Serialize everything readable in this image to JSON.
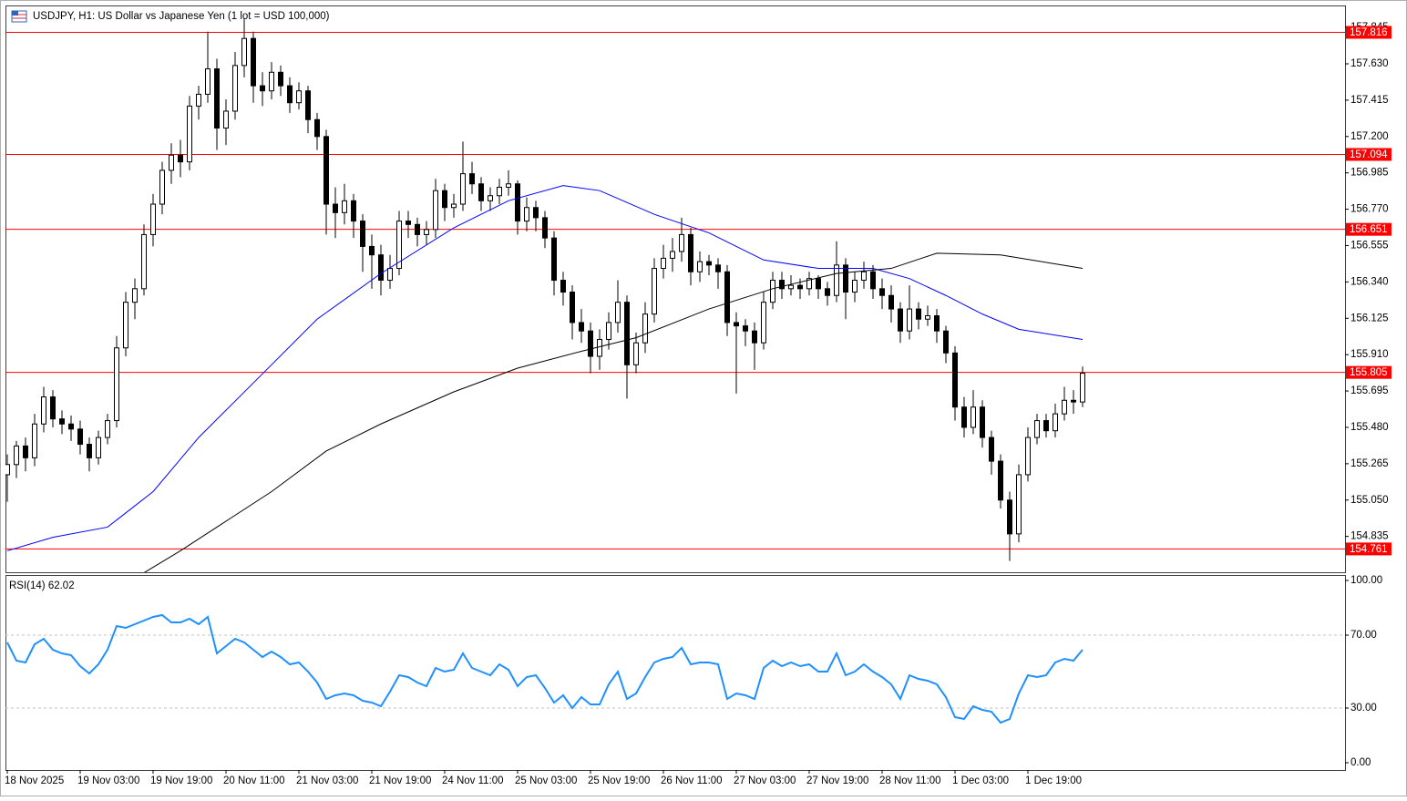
{
  "window_title": "USDJPY, H1:  US Dollar vs Japanese Yen (1 lot = USD 100,000)",
  "chart_data": [
    {
      "type": "candlestick",
      "categories": [
        "18 Nov 2025",
        null,
        null,
        null,
        null,
        null,
        null,
        null,
        "19 Nov 03:00",
        null,
        null,
        null,
        null,
        null,
        null,
        null,
        "19 Nov 19:00",
        null,
        null,
        null,
        null,
        null,
        null,
        null,
        "20 Nov 11:00",
        null,
        null,
        null,
        null,
        null,
        null,
        null,
        "21 Nov 03:00",
        null,
        null,
        null,
        null,
        null,
        null,
        null,
        "21 Nov 19:00",
        null,
        null,
        null,
        null,
        null,
        null,
        null,
        "24 Nov 11:00",
        null,
        null,
        null,
        null,
        null,
        null,
        null,
        "25 Nov 03:00",
        null,
        null,
        null,
        null,
        null,
        null,
        null,
        "25 Nov 19:00",
        null,
        null,
        null,
        null,
        null,
        null,
        null,
        "26 Nov 11:00",
        null,
        null,
        null,
        null,
        null,
        null,
        null,
        "27 Nov 03:00",
        null,
        null,
        null,
        null,
        null,
        null,
        null,
        "27 Nov 19:00",
        null,
        null,
        null,
        null,
        null,
        null,
        null,
        "28 Nov 11:00",
        null,
        null,
        null,
        null,
        null,
        null,
        null,
        "1 Dec 03:00",
        null,
        null,
        null,
        null,
        null,
        null,
        null,
        "1 Dec 19:00",
        null,
        null,
        null,
        null,
        null,
        null
      ],
      "ohlc": [
        [
          155.2,
          155.32,
          155.04,
          155.26
        ],
        [
          155.26,
          155.4,
          155.18,
          155.37
        ],
        [
          155.37,
          155.42,
          155.22,
          155.3
        ],
        [
          155.3,
          155.56,
          155.25,
          155.5
        ],
        [
          155.5,
          155.72,
          155.45,
          155.66
        ],
        [
          155.66,
          155.7,
          155.48,
          155.53
        ],
        [
          155.53,
          155.58,
          155.44,
          155.5
        ],
        [
          155.5,
          155.55,
          155.4,
          155.47
        ],
        [
          155.47,
          155.52,
          155.32,
          155.38
        ],
        [
          155.38,
          155.42,
          155.22,
          155.3
        ],
        [
          155.3,
          155.46,
          155.26,
          155.42
        ],
        [
          155.42,
          155.56,
          155.38,
          155.52
        ],
        [
          155.52,
          156.02,
          155.48,
          155.95
        ],
        [
          155.95,
          156.28,
          155.9,
          156.22
        ],
        [
          156.22,
          156.36,
          156.12,
          156.3
        ],
        [
          156.3,
          156.68,
          156.26,
          156.62
        ],
        [
          156.62,
          156.86,
          156.55,
          156.8
        ],
        [
          156.8,
          157.05,
          156.74,
          157.0
        ],
        [
          157.0,
          157.16,
          156.92,
          157.09
        ],
        [
          157.09,
          157.18,
          156.96,
          157.05
        ],
        [
          157.05,
          157.44,
          157.0,
          157.38
        ],
        [
          157.38,
          157.5,
          157.3,
          157.45
        ],
        [
          157.45,
          157.82,
          157.4,
          157.6
        ],
        [
          157.6,
          157.66,
          157.12,
          157.25
        ],
        [
          157.25,
          157.42,
          157.15,
          157.35
        ],
        [
          157.35,
          157.7,
          157.3,
          157.62
        ],
        [
          157.62,
          157.9,
          157.55,
          157.78
        ],
        [
          157.78,
          157.82,
          157.4,
          157.5
        ],
        [
          157.5,
          157.58,
          157.38,
          157.47
        ],
        [
          157.47,
          157.64,
          157.42,
          157.58
        ],
        [
          157.58,
          157.62,
          157.44,
          157.5
        ],
        [
          157.5,
          157.55,
          157.34,
          157.4
        ],
        [
          157.4,
          157.52,
          157.36,
          157.47
        ],
        [
          157.47,
          157.5,
          157.22,
          157.3
        ],
        [
          157.3,
          157.34,
          157.12,
          157.2
        ],
        [
          157.2,
          157.24,
          156.62,
          156.8
        ],
        [
          156.8,
          156.9,
          156.6,
          156.75
        ],
        [
          156.75,
          156.92,
          156.68,
          156.82
        ],
        [
          156.82,
          156.86,
          156.6,
          156.7
        ],
        [
          156.7,
          156.74,
          156.4,
          156.55
        ],
        [
          156.55,
          156.62,
          156.3,
          156.5
        ],
        [
          156.5,
          156.56,
          156.26,
          156.35
        ],
        [
          156.35,
          156.5,
          156.3,
          156.42
        ],
        [
          156.42,
          156.76,
          156.38,
          156.7
        ],
        [
          156.7,
          156.76,
          156.6,
          156.68
        ],
        [
          156.68,
          156.72,
          156.55,
          156.62
        ],
        [
          156.62,
          156.7,
          156.56,
          156.65
        ],
        [
          156.65,
          156.95,
          156.6,
          156.88
        ],
        [
          156.88,
          156.92,
          156.7,
          156.78
        ],
        [
          156.78,
          156.86,
          156.72,
          156.8
        ],
        [
          156.8,
          157.17,
          156.76,
          156.98
        ],
        [
          156.98,
          157.05,
          156.86,
          156.92
        ],
        [
          156.92,
          156.96,
          156.76,
          156.82
        ],
        [
          156.82,
          156.9,
          156.76,
          156.85
        ],
        [
          156.85,
          156.95,
          156.8,
          156.9
        ],
        [
          156.9,
          157.0,
          156.85,
          156.92
        ],
        [
          156.92,
          156.94,
          156.62,
          156.7
        ],
        [
          156.7,
          156.84,
          156.64,
          156.78
        ],
        [
          156.78,
          156.82,
          156.64,
          156.72
        ],
        [
          156.72,
          156.76,
          156.54,
          156.6
        ],
        [
          156.6,
          156.64,
          156.26,
          156.35
        ],
        [
          156.35,
          156.4,
          156.2,
          156.28
        ],
        [
          156.28,
          156.32,
          156.0,
          156.1
        ],
        [
          156.1,
          156.18,
          155.98,
          156.05
        ],
        [
          156.05,
          156.1,
          155.8,
          155.9
        ],
        [
          155.9,
          156.06,
          155.82,
          156.0
        ],
        [
          156.0,
          156.16,
          155.94,
          156.1
        ],
        [
          156.1,
          156.35,
          156.04,
          156.22
        ],
        [
          156.22,
          156.26,
          155.65,
          155.85
        ],
        [
          155.85,
          156.04,
          155.8,
          155.98
        ],
        [
          155.98,
          156.22,
          155.92,
          156.15
        ],
        [
          156.15,
          156.48,
          156.1,
          156.42
        ],
        [
          156.42,
          156.56,
          156.36,
          156.48
        ],
        [
          156.48,
          156.6,
          156.4,
          156.52
        ],
        [
          156.52,
          156.72,
          156.46,
          156.62
        ],
        [
          156.62,
          156.66,
          156.32,
          156.4
        ],
        [
          156.4,
          156.52,
          156.34,
          156.46
        ],
        [
          156.46,
          156.5,
          156.38,
          156.44
        ],
        [
          156.44,
          156.48,
          156.3,
          156.4
        ],
        [
          156.4,
          156.44,
          156.02,
          156.1
        ],
        [
          156.1,
          156.16,
          155.68,
          156.08
        ],
        [
          156.08,
          156.12,
          155.96,
          156.05
        ],
        [
          156.05,
          156.1,
          155.82,
          155.98
        ],
        [
          155.98,
          156.28,
          155.94,
          156.22
        ],
        [
          156.22,
          156.4,
          156.18,
          156.35
        ],
        [
          156.35,
          156.4,
          156.24,
          156.3
        ],
        [
          156.3,
          156.38,
          156.26,
          156.32
        ],
        [
          156.32,
          156.36,
          156.24,
          156.3
        ],
        [
          156.3,
          156.4,
          156.26,
          156.36
        ],
        [
          156.36,
          156.38,
          156.24,
          156.3
        ],
        [
          156.3,
          156.34,
          156.2,
          156.26
        ],
        [
          156.26,
          156.58,
          156.22,
          156.44
        ],
        [
          156.44,
          156.48,
          156.12,
          156.28
        ],
        [
          156.28,
          156.4,
          156.22,
          156.35
        ],
        [
          156.35,
          156.46,
          156.3,
          156.4
        ],
        [
          156.4,
          156.44,
          156.24,
          156.3
        ],
        [
          156.3,
          156.36,
          156.18,
          156.26
        ],
        [
          156.26,
          156.32,
          156.1,
          156.18
        ],
        [
          156.18,
          156.22,
          155.98,
          156.05
        ],
        [
          156.05,
          156.32,
          156.0,
          156.18
        ],
        [
          156.18,
          156.22,
          156.06,
          156.12
        ],
        [
          156.12,
          156.2,
          156.08,
          156.14
        ],
        [
          156.14,
          156.18,
          155.98,
          156.05
        ],
        [
          156.05,
          156.08,
          155.86,
          155.92
        ],
        [
          155.92,
          155.96,
          155.52,
          155.6
        ],
        [
          155.6,
          155.66,
          155.42,
          155.48
        ],
        [
          155.48,
          155.7,
          155.44,
          155.6
        ],
        [
          155.6,
          155.64,
          155.36,
          155.42
        ],
        [
          155.42,
          155.46,
          155.2,
          155.28
        ],
        [
          155.28,
          155.32,
          155.0,
          155.05
        ],
        [
          155.05,
          155.1,
          154.69,
          154.85
        ],
        [
          154.85,
          155.26,
          154.8,
          155.2
        ],
        [
          155.2,
          155.48,
          155.16,
          155.42
        ],
        [
          155.42,
          155.56,
          155.38,
          155.52
        ],
        [
          155.52,
          155.56,
          155.42,
          155.46
        ],
        [
          155.46,
          155.62,
          155.42,
          155.56
        ],
        [
          155.56,
          155.72,
          155.52,
          155.64
        ],
        [
          155.64,
          155.7,
          155.56,
          155.63
        ],
        [
          155.63,
          155.84,
          155.6,
          155.8
        ]
      ],
      "up_color": "#ffffff",
      "down_color": "#000000",
      "ylim": [
        154.623,
        157.975
      ],
      "yticks": [
        154.835,
        {
          "value": 155.05,
          "label": "155.050"
        },
        155.265,
        {
          "value": 155.48,
          "label": "155.480"
        },
        155.695,
        {
          "value": 155.91,
          "label": "155.910"
        },
        156.125,
        {
          "value": 156.34,
          "label": "156.340"
        },
        156.555,
        {
          "value": 156.77,
          "label": "156.770"
        },
        156.985,
        {
          "value": 157.2,
          "label": "157.200"
        },
        157.415,
        {
          "value": 157.63,
          "label": "157.630"
        },
        157.845
      ],
      "levels": [
        157.816,
        157.094,
        156.651,
        155.805,
        154.761
      ],
      "level_color": "#ff0000",
      "overlays": [
        {
          "color": "#0000ff",
          "x": [
            0,
            5,
            11,
            16,
            21,
            29,
            34,
            41,
            49,
            55,
            61,
            65,
            71,
            77,
            83,
            89,
            95,
            99,
            103,
            107,
            111,
            118
          ],
          "values": [
            154.75,
            154.83,
            154.89,
            155.1,
            155.42,
            155.85,
            156.12,
            156.39,
            156.66,
            156.82,
            156.91,
            156.88,
            156.74,
            156.63,
            156.47,
            156.42,
            156.42,
            156.36,
            156.26,
            156.15,
            156.06,
            156.0
          ]
        },
        {
          "color": "#000000",
          "x": [
            15,
            19,
            23,
            29,
            35,
            41,
            49,
            56,
            63,
            69,
            77,
            84,
            91,
            97,
            102,
            109,
            118
          ],
          "values": [
            154.62,
            154.75,
            154.89,
            155.1,
            155.34,
            155.5,
            155.69,
            155.83,
            155.93,
            156.01,
            156.18,
            156.3,
            156.39,
            156.42,
            156.51,
            156.5,
            156.42
          ]
        }
      ]
    },
    {
      "type": "line",
      "title": "RSI(14) 62.02",
      "color": "#1e90ff",
      "values": [
        66,
        56,
        55,
        65,
        68,
        62,
        60,
        59,
        53,
        49,
        54,
        62,
        75,
        74,
        76,
        78,
        80,
        81,
        77,
        77,
        79,
        76,
        80,
        60,
        64,
        68,
        66,
        62,
        58,
        61,
        58,
        54,
        55,
        50,
        44,
        35,
        37,
        38,
        37,
        34,
        33,
        31,
        39,
        48,
        47,
        44,
        42,
        52,
        50,
        51,
        60,
        52,
        50,
        48,
        54,
        51,
        42,
        47,
        48,
        41,
        33,
        37,
        30,
        36,
        32,
        32,
        43,
        50,
        35,
        38,
        47,
        55,
        57,
        58,
        63,
        54,
        55,
        55,
        54,
        35,
        38,
        37,
        35,
        52,
        56,
        53,
        55,
        53,
        54,
        50,
        50,
        60,
        48,
        50,
        54,
        50,
        47,
        43,
        35,
        48,
        46,
        45,
        43,
        36,
        25,
        24,
        31,
        29,
        28,
        22,
        24,
        38,
        48,
        47,
        48,
        55,
        57,
        56,
        62.02
      ],
      "ylim": [
        -4,
        103
      ],
      "yticks": [
        {
          "value": 100,
          "label": "100.00"
        },
        {
          "value": 70,
          "label": "70.00"
        },
        {
          "value": 30,
          "label": "30.00"
        },
        {
          "value": 0,
          "label": "0.00"
        }
      ],
      "levels": [
        70,
        30
      ],
      "level_color": "#c0c0c0"
    }
  ]
}
